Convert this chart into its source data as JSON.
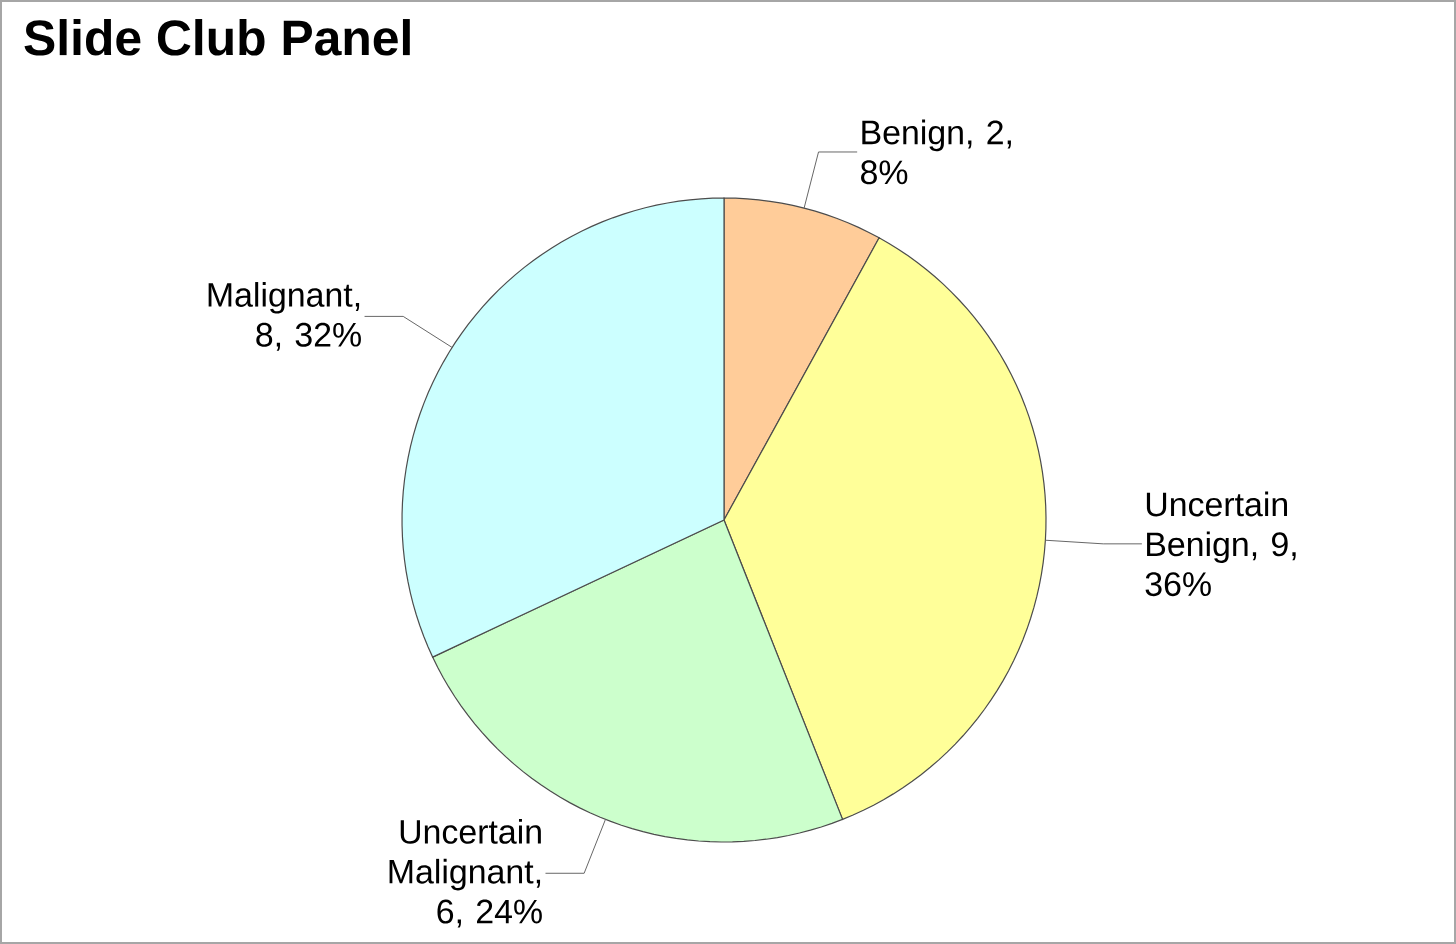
{
  "chart_data": {
    "type": "pie",
    "title": "Slide Club Panel",
    "categories": [
      "Benign",
      "Uncertain Benign",
      "Uncertain Malignant",
      "Malignant"
    ],
    "values": [
      2,
      9,
      6,
      8
    ],
    "colors": [
      "#ffcc99",
      "#ffff99",
      "#ccffcc",
      "#ccffff"
    ],
    "value_labels": [
      ", 2, 8%",
      ", 9, 36%",
      ", 6, 24%",
      ", 8, 32%"
    ]
  }
}
